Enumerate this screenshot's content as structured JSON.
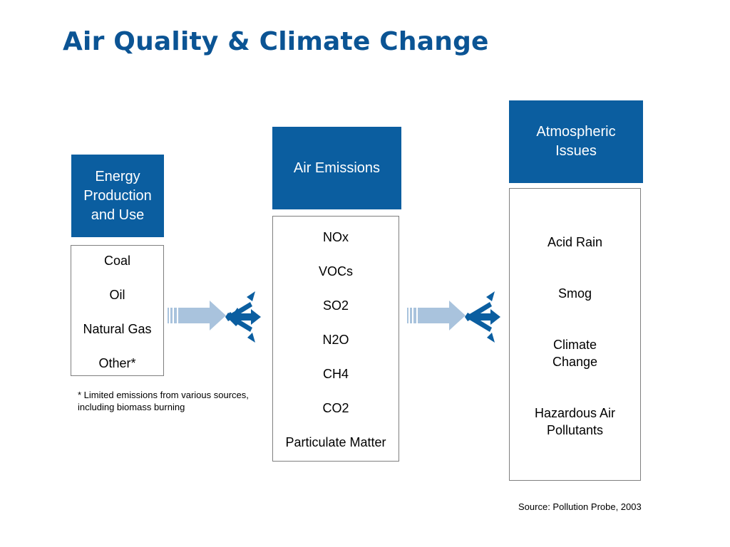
{
  "title": "Air Quality & Climate Change",
  "colors": {
    "title": "#0b5494",
    "header_fill": "#0b5ea0",
    "arrow_light": "#a9c3dd",
    "arrow_dark": "#0b5ea0"
  },
  "energy": {
    "header": "Energy Production and Use",
    "items": [
      "Coal",
      "Oil",
      "Natural Gas",
      "Other*"
    ]
  },
  "emissions": {
    "header": "Air Emissions",
    "items": [
      "NOx",
      "VOCs",
      "SO2",
      "N2O",
      "CH4",
      "CO2",
      "Particulate Matter"
    ]
  },
  "atmospheric": {
    "header": "Atmospheric Issues",
    "items": [
      "Acid Rain",
      "Smog",
      "Climate Change",
      "Hazardous Air Pollutants"
    ]
  },
  "footnote": "* Limited emissions from various sources, including biomass burning",
  "source": "Source:  Pollution Probe, 2003"
}
